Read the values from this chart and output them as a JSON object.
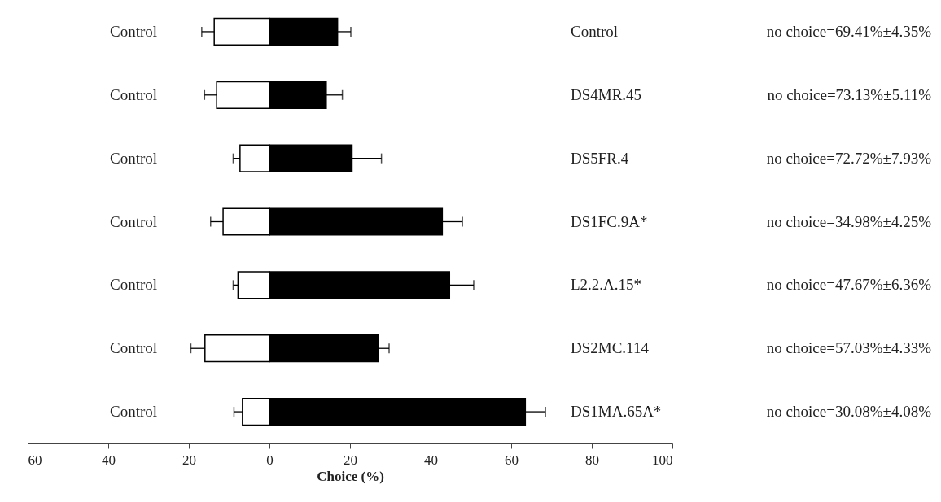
{
  "chart_data": {
    "type": "bar",
    "orientation": "horizontal",
    "xlabel": "Choice (%)",
    "categories": [
      "Control",
      "Control",
      "Control",
      "Control",
      "Control",
      "Control",
      "Control"
    ],
    "series": [
      {
        "color": "#ffffff",
        "values": [
          -13.7,
          -13.1,
          -7.3,
          -11.5,
          -7.8,
          -16.0,
          -6.7
        ],
        "errors": [
          [
            -16.8,
            -13.7
          ],
          [
            -16.1,
            -13.1
          ],
          [
            -9.0,
            -7.3
          ],
          [
            -14.6,
            -11.5
          ],
          [
            -9.0,
            -7.8
          ],
          [
            -19.5,
            -16.0
          ],
          [
            -8.8,
            -6.7
          ]
        ]
      },
      {
        "color": "#000000",
        "values": [
          16.9,
          14.1,
          20.5,
          42.9,
          44.7,
          27.0,
          63.5
        ],
        "errors": [
          [
            16.9,
            20.2
          ],
          [
            14.1,
            18.1
          ],
          [
            20.5,
            27.8
          ],
          [
            42.9,
            47.9
          ],
          [
            44.7,
            50.7
          ],
          [
            27.0,
            29.7
          ],
          [
            63.5,
            68.5
          ]
        ]
      }
    ],
    "xlim": [
      -60,
      100
    ],
    "xticks": [
      {
        "value": -60,
        "label": "60"
      },
      {
        "value": -40,
        "label": "40"
      },
      {
        "value": -20,
        "label": "20"
      },
      0,
      20,
      40,
      60,
      80,
      100
    ],
    "annotations": [
      "Control",
      "DS4MR.45",
      "DS5FR.4",
      "DS1FC.9A*",
      "L2.2.A.15*",
      "DS2MC.114",
      "DS1MA.65A*",
      "no choice=69.41%±4.35%",
      "no choice=73.13%±5.11%",
      "no choice=72.72%±7.93%",
      "no choice=34.98%±4.25%",
      "no choice=47.67%±6.36%",
      "no choice=57.03%±4.33%",
      "no choice=30.08%±4.08%"
    ],
    "stacked": true,
    "grid": false
  }
}
